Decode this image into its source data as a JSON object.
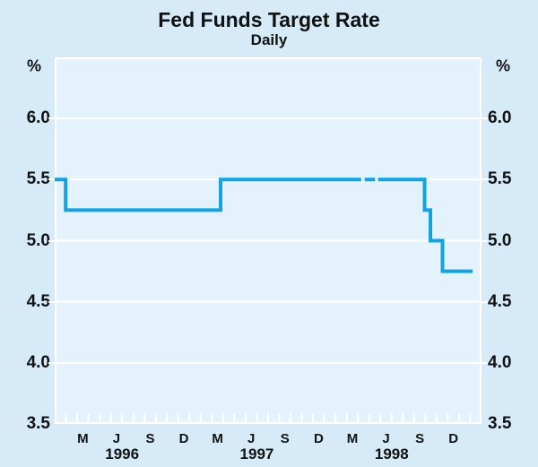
{
  "chart_data": {
    "type": "line",
    "title": "Fed Funds Target Rate",
    "subtitle": "Daily",
    "unit": "%",
    "ylim": [
      3.5,
      6.5
    ],
    "grid": true,
    "legend": "none",
    "yticks": [
      {
        "value": 6.0,
        "label": "6.0"
      },
      {
        "value": 5.5,
        "label": "5.5"
      },
      {
        "value": 5.0,
        "label": "5.0"
      },
      {
        "value": 4.5,
        "label": "4.5"
      },
      {
        "value": 4.0,
        "label": "4.0"
      },
      {
        "value": 3.5,
        "label": "3.5"
      }
    ],
    "x_start": "1996-01",
    "x_months_total": 38,
    "month_labels": [
      {
        "label": "M",
        "m": 2.5
      },
      {
        "label": "J",
        "m": 5.5
      },
      {
        "label": "S",
        "m": 8.5
      },
      {
        "label": "D",
        "m": 11.5
      },
      {
        "label": "M",
        "m": 14.5
      },
      {
        "label": "J",
        "m": 17.5
      },
      {
        "label": "S",
        "m": 20.5
      },
      {
        "label": "D",
        "m": 23.5
      },
      {
        "label": "M",
        "m": 26.5
      },
      {
        "label": "J",
        "m": 29.5
      },
      {
        "label": "S",
        "m": 32.5
      },
      {
        "label": "D",
        "m": 35.5
      }
    ],
    "year_labels": [
      {
        "label": "1996",
        "m": 6
      },
      {
        "label": "1997",
        "m": 18
      },
      {
        "label": "1998",
        "m": 30
      }
    ],
    "series": [
      {
        "name": "fed-funds-target-rate",
        "step_points": [
          {
            "date": "1996-01-01",
            "m": 0,
            "value": 5.5
          },
          {
            "date": "1996-01-31",
            "m": 0.97,
            "value": 5.25
          },
          {
            "date": "1997-03-25",
            "m": 14.77,
            "value": 5.5
          },
          {
            "date": "1998-09-29",
            "m": 32.93,
            "value": 5.25
          },
          {
            "date": "1998-10-15",
            "m": 33.45,
            "value": 5.0
          },
          {
            "date": "1998-11-17",
            "m": 34.53,
            "value": 4.75
          }
        ],
        "end_m": 37.2,
        "end_value": 4.75,
        "line_gaps_m": [
          [
            27.28,
            27.6
          ],
          [
            28.52,
            28.8
          ]
        ]
      }
    ]
  },
  "colors": {
    "outer_bg": "#d6ebf7",
    "plot_bg": "#e4f3fb",
    "grid": "#ffffff",
    "line": "#14a3e2",
    "text": "#101214"
  }
}
